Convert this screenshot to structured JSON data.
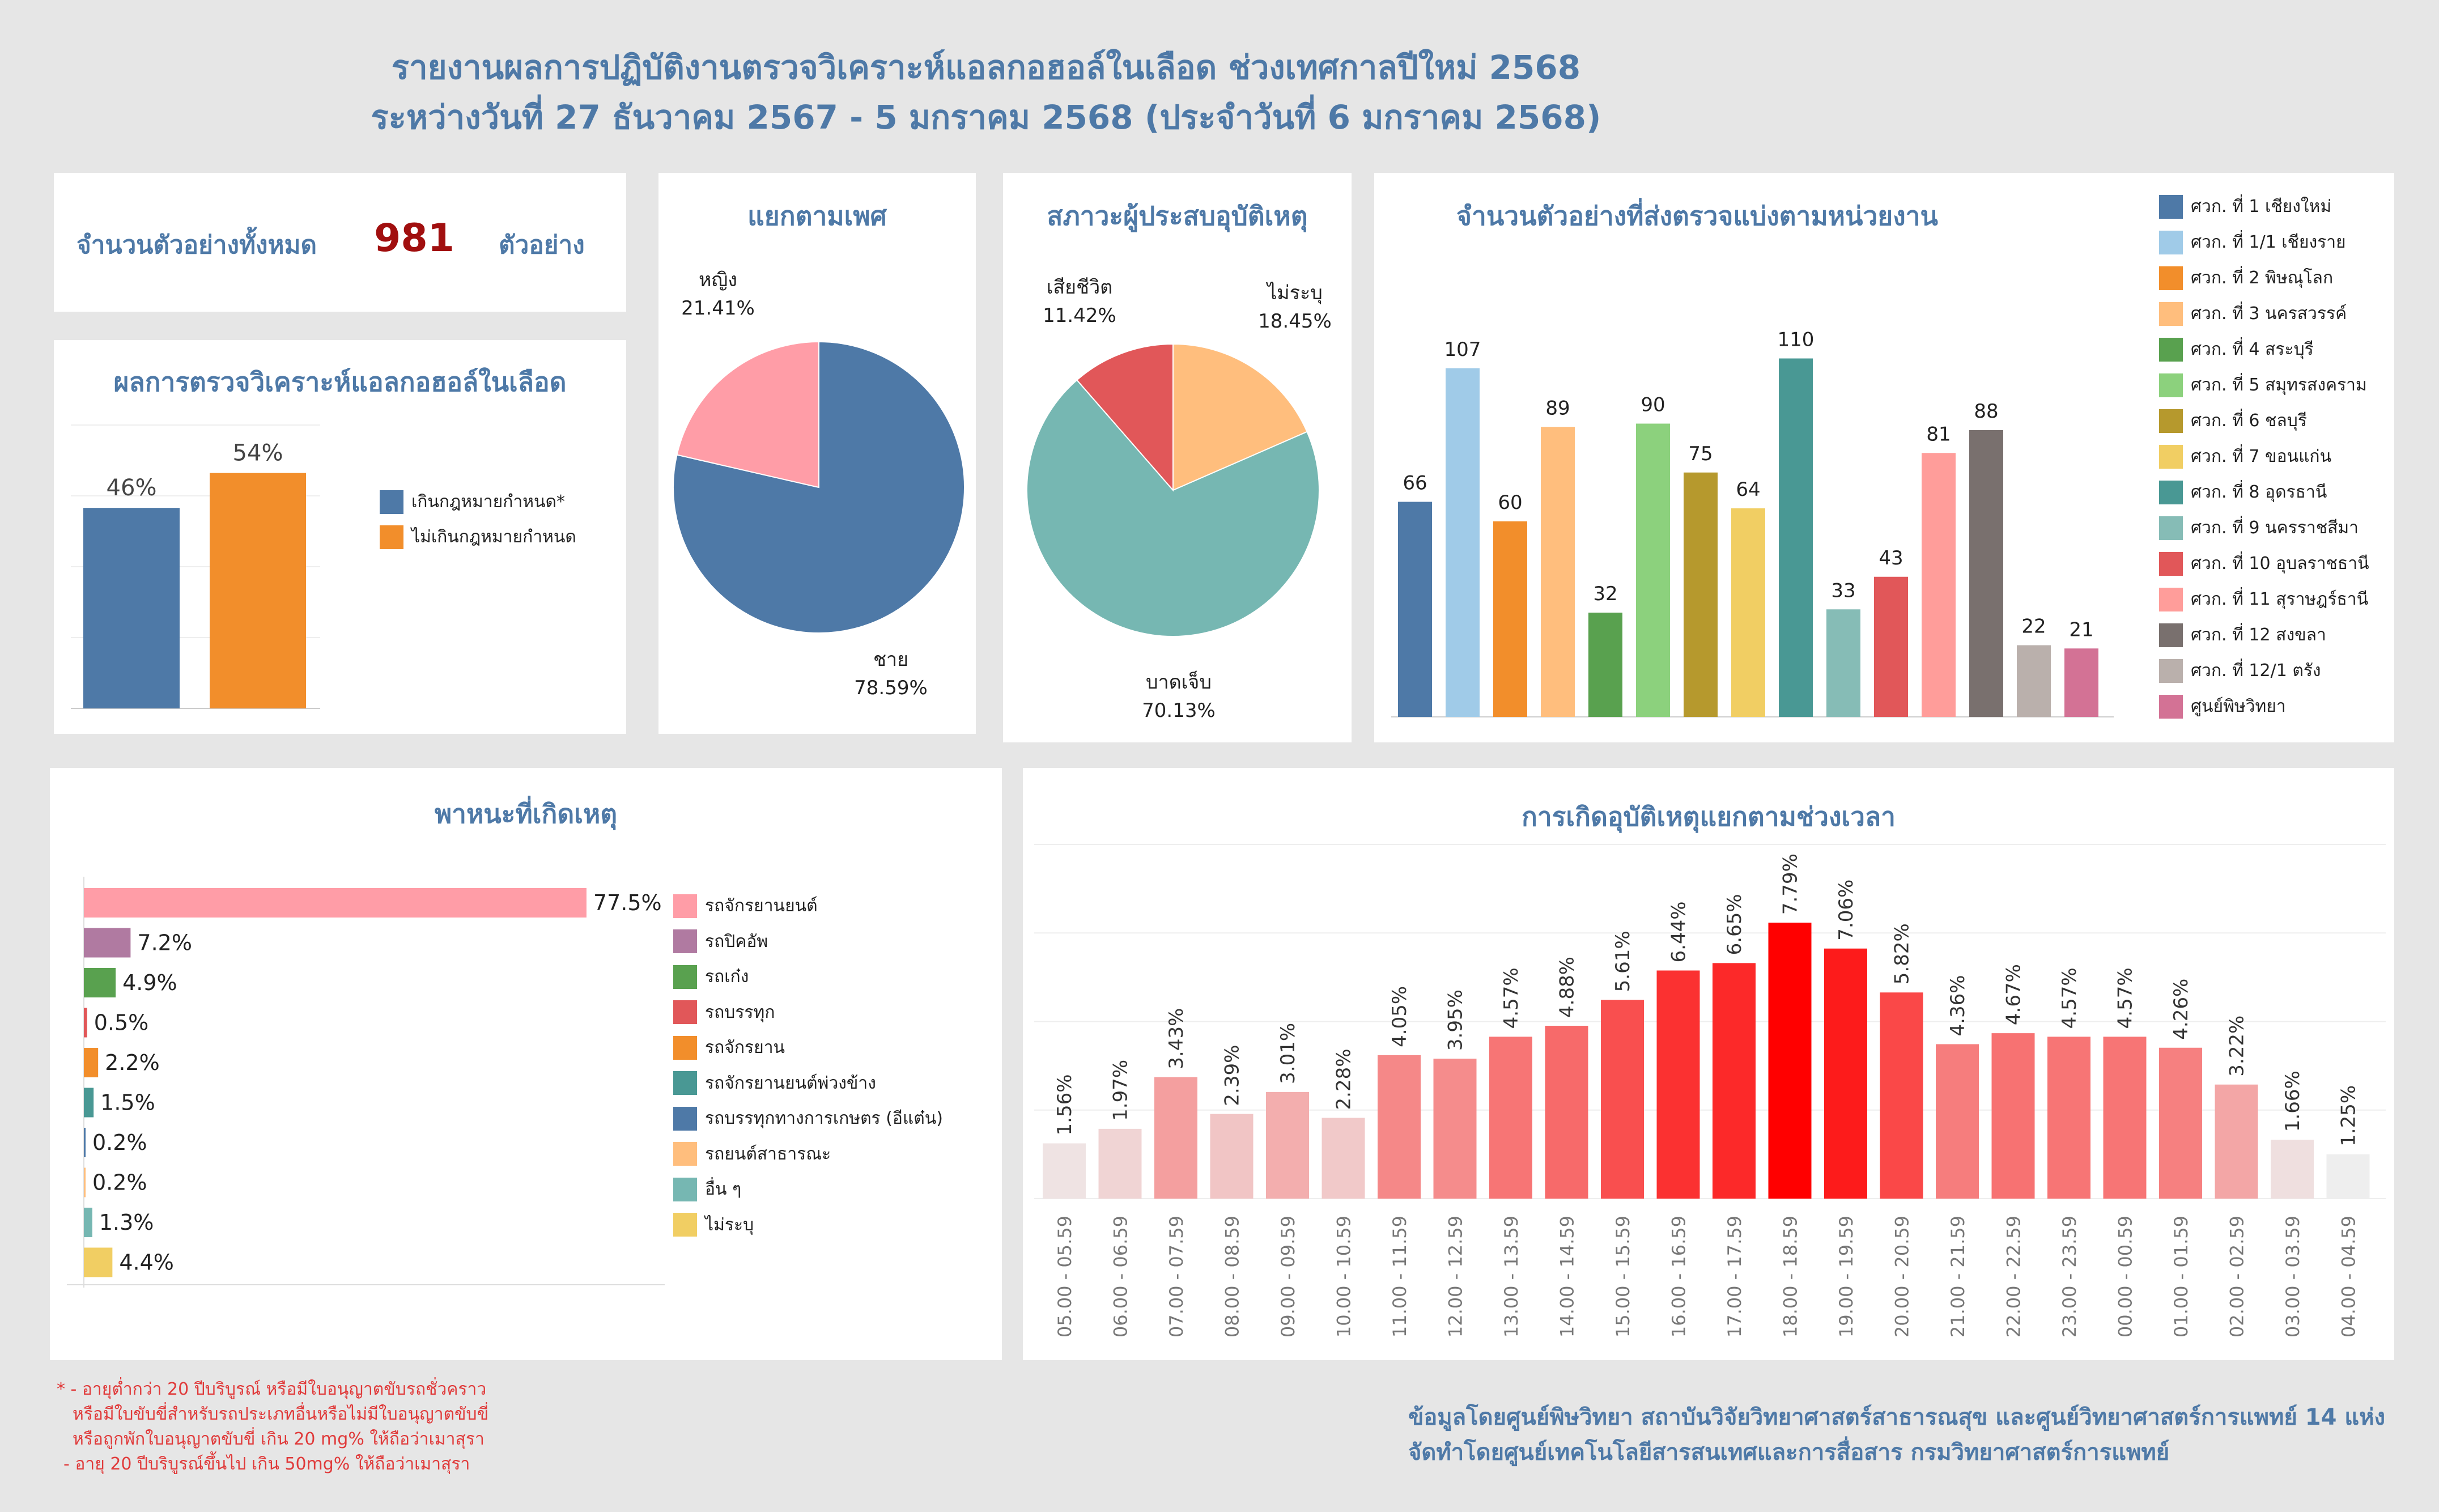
{
  "header": {
    "title_line1": "รายงานผลการปฏิบัติงานตรวจวิเคราะห์แอลกอฮอล์ในเลือด ช่วงเทศกาลปีใหม่ 2568",
    "title_line2": "ระหว่างวันที่ 27 ธันวาคม 2567 - 5 มกราคม 2568 (ประจำวันที่ 6 มกราคม 2568)"
  },
  "total": {
    "label": "จำนวนตัวอย่างทั้งหมด",
    "value": "981",
    "unit": "ตัวอย่าง",
    "value_color": "#a10f0f"
  },
  "footer": {
    "note_line1": "* - อายุต่ำกว่า 20 ปีบริบูรณ์ หรือมีใบอนุญาตขับรถชั่วคราว",
    "note_line2": "หรือมีใบขับขี่สำหรับรถประเภทอื่นหรือไม่มีใบอนุญาตขับขี่",
    "note_line3": "หรือถูกพักใบอนุญาตขับขี่ เกิน 20 mg% ให้ถือว่าเมาสุรา",
    "note_line4": "- อายุ 20 ปีบริบูรณ์ขึ้นไป เกิน 50mg% ให้ถือว่าเมาสุรา",
    "credit_line1": "ข้อมูลโดยศูนย์พิษวิทยา สถาบันวิจัยวิทยาศาสตร์สาธารณสุข และศูนย์วิทยาศาสตร์การแพทย์ 14 แห่ง",
    "credit_line2": "จัดทำโดยศูนย์เทคโนโลยีสารสนเทศและการสื่อสาร กรมวิทยาศาสตร์การแพทย์"
  },
  "chart_data": [
    {
      "type": "bar",
      "title": "ผลการตรวจวิเคราะห์แอลกอฮอล์ในเลือด",
      "categories": [
        "เกินกฎหมายกำหนด*",
        "ไม่เกินกฎหมายกำหนด"
      ],
      "values": [
        46,
        54
      ],
      "labels": [
        "46%",
        "54%"
      ],
      "colors": [
        "#4e79a7",
        "#f28e2b"
      ],
      "ylim": [
        0,
        65
      ],
      "legend_position": "right"
    },
    {
      "type": "pie",
      "title": "แยกตามเพศ",
      "slices": [
        {
          "label": "ชาย",
          "value": 78.59,
          "text": "78.59%",
          "color": "#4e79a7"
        },
        {
          "label": "หญิง",
          "value": 21.41,
          "text": "21.41%",
          "color": "#ff9da7"
        }
      ]
    },
    {
      "type": "pie",
      "title": "สภาวะผู้ประสบอุบัติเหตุ",
      "slices": [
        {
          "label": "ไม่ระบุ",
          "value": 18.45,
          "text": "18.45%",
          "color": "#ffbe7d"
        },
        {
          "label": "บาดเจ็บ",
          "value": 70.13,
          "text": "70.13%",
          "color": "#76b7b2"
        },
        {
          "label": "เสียชีวิต",
          "value": 11.42,
          "text": "11.42%",
          "color": "#e15759"
        }
      ]
    },
    {
      "type": "bar",
      "title": "จำนวนตัวอย่างที่ส่งตรวจแบ่งตามหน่วยงาน",
      "categories": [
        "ศวก. ที่ 1 เชียงใหม่",
        "ศวก. ที่ 1/1 เชียงราย",
        "ศวก. ที่ 2 พิษณุโลก",
        "ศวก. ที่ 3 นครสวรรค์",
        "ศวก. ที่ 4 สระบุรี",
        "ศวก. ที่ 5 สมุทรสงคราม",
        "ศวก. ที่ 6 ชลบุรี",
        "ศวก. ที่ 7 ขอนแก่น",
        "ศวก. ที่ 8 อุดรธานี",
        "ศวก. ที่ 9 นครราชสีมา",
        "ศวก. ที่ 10 อุบลราชธานี",
        "ศวก. ที่ 11 สุราษฎร์ธานี",
        "ศวก. ที่ 12 สงขลา",
        "ศวก. ที่ 12/1 ตรัง",
        "ศูนย์พิษวิทยา"
      ],
      "values": [
        66,
        107,
        60,
        89,
        32,
        90,
        75,
        64,
        110,
        33,
        43,
        81,
        88,
        22,
        21
      ],
      "colors": [
        "#4e79a7",
        "#a0cbe8",
        "#f28e2b",
        "#ffbe7d",
        "#59a14f",
        "#8cd17d",
        "#b6992d",
        "#f1ce63",
        "#499894",
        "#86bcb6",
        "#e15759",
        "#ff9d9a",
        "#79706e",
        "#bab0ac",
        "#d37295"
      ],
      "ylim": [
        0,
        120
      ],
      "legend_position": "right"
    },
    {
      "type": "bar",
      "orientation": "horizontal",
      "title": "พาหนะที่เกิดเหตุ",
      "categories": [
        "รถจักรยานยนต์",
        "รถปิคอัพ",
        "รถเก๋ง",
        "รถบรรทุก",
        "รถจักรยาน",
        "รถจักรยานยนต์พ่วงข้าง",
        "รถบรรทุกทางการเกษตร (อีแต๋น)",
        "รถยนต์สาธารณะ",
        "อื่น ๆ",
        "ไม่ระบุ"
      ],
      "values": [
        77.5,
        7.2,
        4.9,
        0.5,
        2.2,
        1.5,
        0.2,
        0.2,
        1.3,
        4.4
      ],
      "labels": [
        "77.5%",
        "7.2%",
        "4.9%",
        "0.5%",
        "2.2%",
        "1.5%",
        "0.2%",
        "0.2%",
        "1.3%",
        "4.4%"
      ],
      "colors": [
        "#ff9da7",
        "#b07aa1",
        "#59a14f",
        "#e15759",
        "#f28e2b",
        "#499894",
        "#4e79a7",
        "#ffbe7d",
        "#76b7b2",
        "#f1ce63"
      ],
      "xlim": [
        0,
        90
      ],
      "legend_position": "right"
    },
    {
      "type": "bar",
      "title": "การเกิดอุบัติเหตุแยกตามช่วงเวลา",
      "categories": [
        "05.00 - 05.59",
        "06.00 - 06.59",
        "07.00 - 07.59",
        "08.00 - 08.59",
        "09.00 - 09.59",
        "10.00 - 10.59",
        "11.00 - 11.59",
        "12.00 - 12.59",
        "13.00 - 13.59",
        "14.00 - 14.59",
        "15.00 - 15.59",
        "16.00 - 16.59",
        "17.00 - 17.59",
        "18.00 - 18.59",
        "19.00 - 19.59",
        "20.00 - 20.59",
        "21.00 - 21.59",
        "22.00 - 22.59",
        "23.00 - 23.59",
        "00.00 - 00.59",
        "01.00 - 01.59",
        "02.00 - 02.59",
        "03.00 - 03.59",
        "04.00 - 04.59"
      ],
      "values": [
        1.56,
        1.97,
        3.43,
        2.39,
        3.01,
        2.28,
        4.05,
        3.95,
        4.57,
        4.88,
        5.61,
        6.44,
        6.65,
        7.79,
        7.06,
        5.82,
        4.36,
        4.67,
        4.57,
        4.57,
        4.26,
        3.22,
        1.66,
        1.25
      ],
      "labels": [
        "1.56%",
        "1.97%",
        "3.43%",
        "2.39%",
        "3.01%",
        "2.28%",
        "4.05%",
        "3.95%",
        "4.57%",
        "4.88%",
        "5.61%",
        "6.44%",
        "6.65%",
        "7.79%",
        "7.06%",
        "5.82%",
        "4.36%",
        "4.67%",
        "4.57%",
        "4.57%",
        "4.26%",
        "3.22%",
        "1.66%",
        "1.25%"
      ],
      "color_scale": [
        "#eeeeee",
        "#ff0000"
      ],
      "ylim": [
        0,
        10
      ],
      "grid": true
    }
  ]
}
